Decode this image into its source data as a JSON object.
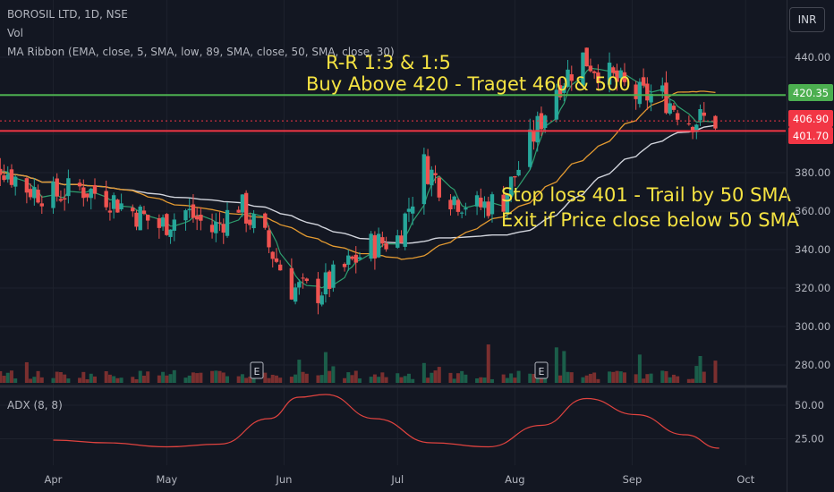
{
  "header": {
    "symbol_line": "BOROSIL LTD, 1D, NSE",
    "vol_label": "Vol",
    "ma_ribbon_label": "MA Ribbon (EMA, close, 5, SMA, low, 89, SMA, close, 50, SMA, close, 30)",
    "currency_button": "INR"
  },
  "adx_label": "ADX (8, 8)",
  "annotations": {
    "rr": "R-R 1:3  & 1:5",
    "buy": "Buy Above 420 - Traget 460 & 500",
    "stop": "Stop loss 401 - Trail by 50 SMA",
    "exit": "Exit if Price close below 50 SMA"
  },
  "earnings_marker": "E",
  "colors": {
    "background": "#131722",
    "up": "#26a69a",
    "down": "#ef5350",
    "green_line": "#4caf50",
    "red_line": "#f23645",
    "annotation_text": "#f5e342",
    "ma_orange": "#e39a31",
    "ma_white": "#d1d4dc",
    "ma_green": "#2e9e6e",
    "adx": "#e0433f"
  },
  "chart_data": [
    {
      "type": "candlestick",
      "title": "BOROSIL LTD, 1D, NSE",
      "x_tick_labels": [
        "Apr",
        "May",
        "Jun",
        "Jul",
        "Aug",
        "Sep",
        "Oct"
      ],
      "y_ticks": [
        440,
        420,
        400,
        380,
        360,
        340,
        320,
        300,
        280
      ],
      "ylim": [
        270,
        455
      ],
      "price_labels": [
        {
          "value": "420.35",
          "role": "buy level"
        },
        {
          "value": "406.90",
          "role": "last price"
        },
        {
          "value": "401.70",
          "role": "stop level"
        }
      ],
      "horizontal_lines": [
        {
          "value": 420.35,
          "color": "green"
        },
        {
          "value": 401.7,
          "color": "red"
        },
        {
          "value": 406.9,
          "style": "dotted",
          "color": "red"
        }
      ],
      "close_path": [
        [
          "2024-03-11",
          378
        ],
        [
          "2024-03-18",
          384
        ],
        [
          "2024-03-25",
          372
        ],
        [
          "2024-04-01",
          368
        ],
        [
          "2024-04-08",
          372
        ],
        [
          "2024-04-15",
          368
        ],
        [
          "2024-04-22",
          360
        ],
        [
          "2024-04-29",
          352
        ],
        [
          "2024-05-06",
          360
        ],
        [
          "2024-05-13",
          350
        ],
        [
          "2024-05-20",
          364
        ],
        [
          "2024-05-27",
          345
        ],
        [
          "2024-06-03",
          320
        ],
        [
          "2024-06-10",
          318
        ],
        [
          "2024-06-17",
          330
        ],
        [
          "2024-06-24",
          342
        ],
        [
          "2024-07-01",
          346
        ],
        [
          "2024-07-08",
          384
        ],
        [
          "2024-07-15",
          368
        ],
        [
          "2024-07-22",
          362
        ],
        [
          "2024-07-29",
          366
        ],
        [
          "2024-08-05",
          395
        ],
        [
          "2024-08-12",
          425
        ],
        [
          "2024-08-19",
          440
        ],
        [
          "2024-08-26",
          430
        ],
        [
          "2024-09-02",
          420
        ],
        [
          "2024-09-09",
          420
        ],
        [
          "2024-09-16",
          408
        ],
        [
          "2024-09-23",
          407
        ]
      ],
      "volume_scale": "relative",
      "earnings_markers": [
        "late May",
        "mid Aug"
      ]
    },
    {
      "type": "line",
      "title": "ADX (8, 8)",
      "y_ticks": [
        50.0,
        25.0
      ],
      "y_tick_labels": [
        "50.00",
        "25.00"
      ],
      "series": [
        {
          "values": [
            [
              "2024-04-01",
              24
            ],
            [
              "2024-04-15",
              22
            ],
            [
              "2024-05-01",
              19
            ],
            [
              "2024-05-15",
              21
            ],
            [
              "2024-05-28",
              40
            ],
            [
              "2024-06-05",
              56
            ],
            [
              "2024-06-12",
              58
            ],
            [
              "2024-06-25",
              40
            ],
            [
              "2024-07-10",
              22
            ],
            [
              "2024-07-25",
              19
            ],
            [
              "2024-08-08",
              35
            ],
            [
              "2024-08-20",
              55
            ],
            [
              "2024-09-02",
              43
            ],
            [
              "2024-09-15",
              28
            ],
            [
              "2024-09-24",
              18
            ]
          ]
        }
      ]
    }
  ]
}
